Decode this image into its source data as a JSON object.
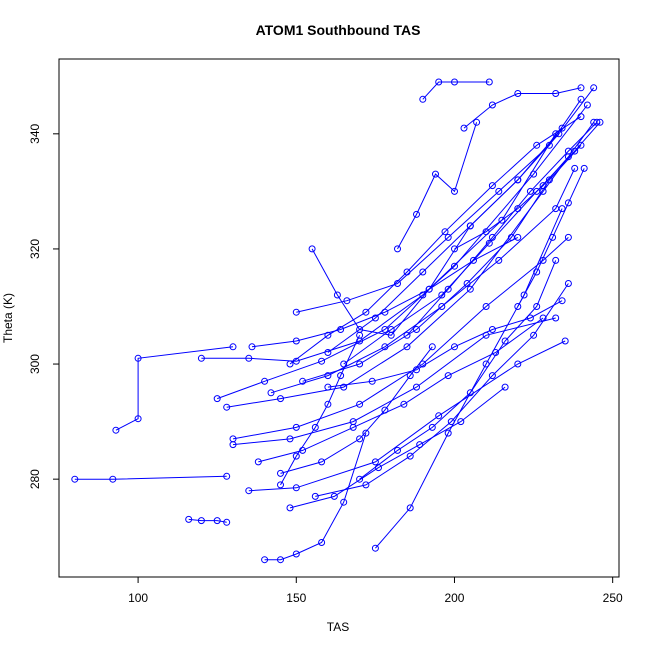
{
  "chart_data": {
    "type": "line",
    "title": "ATOM1 Southbound TAS",
    "xlabel": "TAS",
    "ylabel": "Theta (K)",
    "xlim": [
      75,
      252
    ],
    "ylim": [
      263,
      353
    ],
    "xticks": [
      100,
      150,
      200,
      250
    ],
    "yticks": [
      280,
      300,
      320,
      340
    ],
    "grid": false,
    "legend": "none",
    "color": "#0000ff",
    "marker": "open-circle",
    "series": [
      {
        "x": [
          80,
          92,
          128
        ],
        "y": [
          280,
          280,
          280.5
        ]
      },
      {
        "x": [
          93,
          100,
          100,
          130
        ],
        "y": [
          288.5,
          290.5,
          301,
          303
        ]
      },
      {
        "x": [
          116,
          120,
          125,
          128
        ],
        "y": [
          273,
          272.8,
          272.8,
          272.5
        ]
      },
      {
        "x": [
          120,
          135,
          150,
          170,
          190,
          215,
          232
        ],
        "y": [
          301,
          301,
          300.5,
          304,
          312,
          325,
          340
        ]
      },
      {
        "x": [
          125,
          140,
          158,
          178,
          200,
          225,
          242
        ],
        "y": [
          294,
          297,
          300.5,
          306,
          317,
          333,
          345
        ]
      },
      {
        "x": [
          128,
          145,
          165,
          185,
          205,
          228,
          244
        ],
        "y": [
          292.5,
          294,
          296,
          303,
          313,
          330,
          342
        ]
      },
      {
        "x": [
          130,
          148,
          168,
          188,
          210,
          232
        ],
        "y": [
          286,
          287,
          290,
          296,
          305,
          308
        ]
      },
      {
        "x": [
          135,
          150,
          175,
          195,
          220,
          235
        ],
        "y": [
          278,
          278.5,
          283,
          291,
          300,
          304
        ]
      },
      {
        "x": [
          140,
          145,
          150,
          158,
          165,
          172
        ],
        "y": [
          266,
          266,
          267,
          269,
          276,
          288
        ]
      },
      {
        "x": [
          145,
          150,
          156,
          160,
          164,
          170
        ],
        "y": [
          279,
          284,
          289,
          293,
          298,
          305
        ]
      },
      {
        "x": [
          148,
          160,
          172,
          185,
          197,
          212,
          226,
          240
        ],
        "y": [
          300,
          305,
          309,
          316,
          323,
          331,
          338,
          343
        ]
      },
      {
        "x": [
          155,
          163,
          170,
          180,
          192,
          205,
          220,
          234
        ],
        "y": [
          320,
          312,
          306,
          305,
          313,
          324,
          332,
          341
        ]
      },
      {
        "x": [
          150,
          166,
          182,
          198,
          214,
          230,
          240
        ],
        "y": [
          309,
          311,
          314,
          322,
          330,
          338,
          346
        ]
      },
      {
        "x": [
          138,
          152,
          168,
          184,
          198,
          213,
          228
        ],
        "y": [
          283,
          285,
          289,
          293,
          298,
          302,
          308
        ]
      },
      {
        "x": [
          160,
          175,
          190,
          205,
          220,
          233,
          244
        ],
        "y": [
          302,
          308,
          316,
          324,
          332,
          340,
          348
        ]
      },
      {
        "x": [
          142,
          160,
          178,
          196,
          214,
          232,
          238
        ],
        "y": [
          295,
          298,
          303,
          310,
          318,
          327,
          334
        ]
      },
      {
        "x": [
          190,
          195,
          200,
          211
        ],
        "y": [
          346,
          349,
          349,
          349
        ]
      },
      {
        "x": [
          203,
          212,
          220,
          232,
          240
        ],
        "y": [
          341,
          345,
          347,
          347,
          348
        ]
      },
      {
        "x": [
          182,
          188,
          194,
          200,
          207
        ],
        "y": [
          320,
          326,
          333,
          330,
          342
        ]
      },
      {
        "x": [
          170,
          182,
          193,
          205,
          216,
          226,
          232
        ],
        "y": [
          280,
          285,
          289,
          295,
          304,
          310,
          318
        ]
      },
      {
        "x": [
          156,
          172,
          186,
          199,
          212,
          225,
          236
        ],
        "y": [
          277,
          279,
          284,
          290,
          298,
          305,
          314
        ]
      },
      {
        "x": [
          175,
          186,
          198,
          210,
          222,
          234
        ],
        "y": [
          268,
          275,
          288,
          300,
          312,
          327
        ]
      },
      {
        "x": [
          152,
          170,
          188,
          204,
          218,
          230,
          240
        ],
        "y": [
          297,
          300,
          306,
          314,
          322,
          332,
          338
        ]
      },
      {
        "x": [
          165,
          180,
          196,
          211,
          226,
          238,
          246
        ],
        "y": [
          300,
          306,
          312,
          321,
          330,
          337,
          342
        ]
      },
      {
        "x": [
          130,
          150,
          170,
          190,
          210,
          228,
          236
        ],
        "y": [
          287,
          289,
          293,
          300,
          310,
          318,
          322
        ]
      },
      {
        "x": [
          145,
          158,
          170,
          178,
          186,
          193
        ],
        "y": [
          281,
          283,
          287,
          292,
          298,
          303
        ]
      },
      {
        "x": [
          185,
          198,
          212,
          224,
          236,
          245
        ],
        "y": [
          305,
          313,
          322,
          330,
          337,
          342
        ]
      },
      {
        "x": [
          200,
          210,
          220,
          228,
          236
        ],
        "y": [
          320,
          323,
          327,
          331,
          336
        ]
      },
      {
        "x": [
          148,
          162,
          176,
          189,
          202,
          216
        ],
        "y": [
          275,
          277,
          282,
          286,
          290,
          296
        ]
      },
      {
        "x": [
          220,
          226,
          231,
          236,
          241
        ],
        "y": [
          310,
          316,
          322,
          328,
          334
        ]
      },
      {
        "x": [
          136,
          150,
          164,
          178,
          192,
          206,
          220
        ],
        "y": [
          303,
          304,
          306,
          309,
          313,
          318,
          322
        ]
      },
      {
        "x": [
          160,
          174,
          188,
          200,
          212,
          224,
          234
        ],
        "y": [
          296,
          297,
          299,
          303,
          306,
          308,
          311
        ]
      }
    ]
  }
}
